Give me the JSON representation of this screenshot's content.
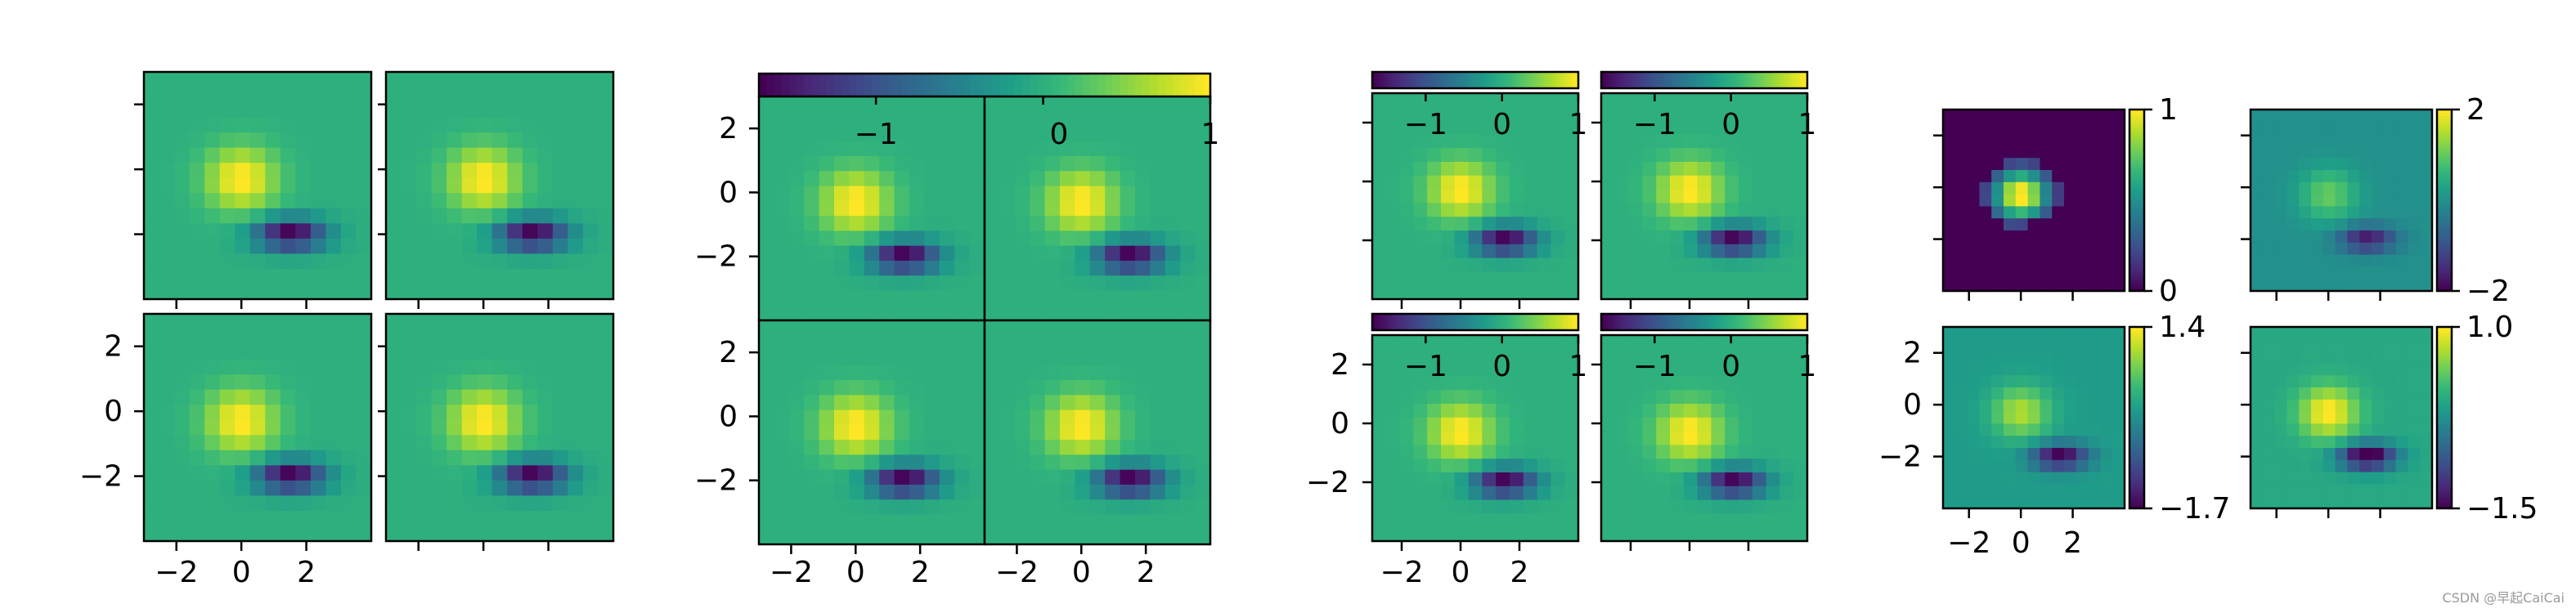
{
  "watermark": "CSDN @早起CaiCai",
  "image_field": {
    "colormap": "viridis",
    "grid": [
      15,
      15
    ],
    "extent": [
      -3,
      4,
      -4,
      3
    ],
    "description": "bivariate gaussian difference: positive blob near (0,-0.5), negative blob near (1.5,-2)"
  },
  "chart_data": [
    {
      "type": "heatmap",
      "group": "grid-1",
      "panels": 4,
      "layout": "2x2",
      "colorbar": "none",
      "x_tick_labels": [
        "−2",
        "0",
        "2"
      ],
      "y_tick_labels": [
        "2",
        "0",
        "−2"
      ],
      "vmin": -1.7,
      "vmax": 1.0
    },
    {
      "type": "heatmap",
      "group": "grid-2",
      "panels": 4,
      "layout": "2x2",
      "colorbar": "single-top",
      "colorbar_ticks": [
        "−1",
        "0",
        "1"
      ],
      "x_tick_labels": [
        "−2",
        "0",
        "2"
      ],
      "y_tick_labels": [
        "2",
        "0",
        "−2"
      ],
      "vmin": -1.7,
      "vmax": 1.0
    },
    {
      "type": "heatmap",
      "group": "grid-3",
      "panels": 4,
      "layout": "2x2",
      "colorbar": "each-top",
      "colorbar_ticks": [
        "−1",
        "0",
        "1"
      ],
      "x_tick_labels": [
        "−2",
        "0",
        "2"
      ],
      "y_tick_labels": [
        "2",
        "0",
        "−2"
      ],
      "vmin": -1.7,
      "vmax": 1.0
    },
    {
      "type": "heatmap",
      "group": "grid-4",
      "panels": 4,
      "layout": "2x2",
      "colorbar": "each-right",
      "x_tick_labels": [
        "−2",
        "0",
        "2"
      ],
      "y_tick_labels": [
        "2",
        "0",
        "−2"
      ],
      "panel_colorbars": [
        {
          "min": "0",
          "max": "1",
          "vmin": 0,
          "vmax": 1,
          "clip": true
        },
        {
          "min": "−2",
          "max": "2",
          "vmin": -2,
          "vmax": 2
        },
        {
          "min": "−1.7",
          "max": "1.4",
          "vmin": -1.7,
          "vmax": 1.4
        },
        {
          "min": "−1.5",
          "max": "1.0",
          "vmin": -1.5,
          "vmax": 1.0
        }
      ]
    }
  ]
}
